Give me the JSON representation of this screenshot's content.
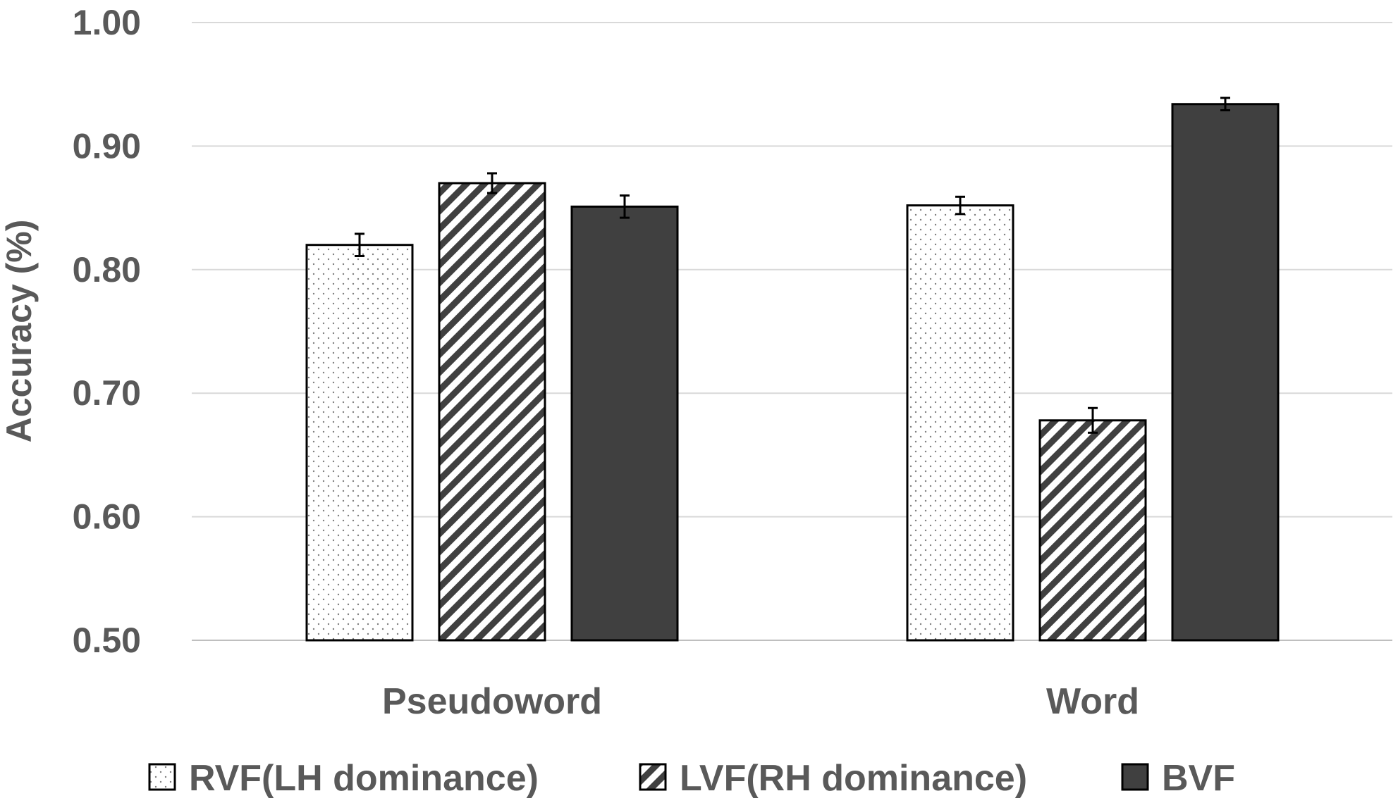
{
  "chart_data": {
    "type": "bar",
    "title": "",
    "xlabel": "",
    "ylabel": "Accuracy (%)",
    "ylim": [
      0.5,
      1.0
    ],
    "yticks": [
      "0.50",
      "0.60",
      "0.70",
      "0.80",
      "0.90",
      "1.00"
    ],
    "categories": [
      "Pseudoword",
      "Word"
    ],
    "series": [
      {
        "name": "RVF(LH dominance)",
        "pattern": "dots",
        "color": "#ffffff",
        "values": [
          0.82,
          0.852
        ],
        "errors": [
          0.009,
          0.007
        ]
      },
      {
        "name": "LVF(RH dominance)",
        "pattern": "diagonal-hatch",
        "color": "#404040",
        "values": [
          0.87,
          0.678
        ],
        "errors": [
          0.008,
          0.01
        ]
      },
      {
        "name": "BVF",
        "pattern": "solid",
        "color": "#404040",
        "values": [
          0.851,
          0.934
        ],
        "errors": [
          0.009,
          0.005
        ]
      }
    ],
    "grid": true,
    "legend_position": "bottom"
  }
}
